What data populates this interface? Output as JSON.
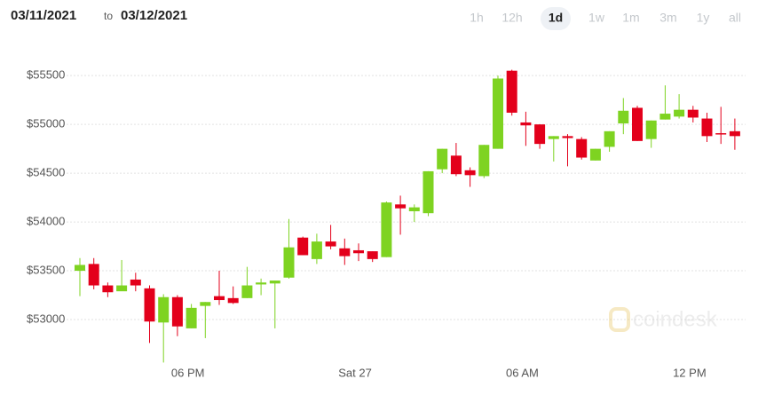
{
  "header": {
    "from_date": "03/11/2021",
    "separator": "to",
    "to_date": "03/12/2021",
    "ranges": [
      "1h",
      "12h",
      "1d",
      "1w",
      "1m",
      "3m",
      "1y",
      "all"
    ],
    "selected_range": "1d"
  },
  "watermark": "coindesk",
  "chart_data": {
    "type": "candlestick",
    "categories": [
      null,
      null,
      null,
      null,
      null,
      null,
      null,
      null,
      null,
      null,
      null,
      null,
      null,
      null,
      null,
      null,
      null,
      null,
      null,
      null,
      null,
      null,
      null,
      null,
      null,
      null,
      null,
      null,
      null,
      null,
      null,
      null,
      null,
      null,
      null,
      null,
      null,
      null,
      null,
      null,
      null,
      null,
      null,
      null,
      null,
      null,
      null,
      null
    ],
    "open": [
      53500,
      53570,
      53350,
      53290,
      53410,
      53320,
      52970,
      53230,
      52910,
      53140,
      53240,
      53220,
      53220,
      53360,
      53370,
      53430,
      53840,
      53620,
      53800,
      53730,
      53710,
      53700,
      53640,
      54180,
      54110,
      54090,
      54540,
      54680,
      54530,
      54470,
      54750,
      55550,
      55020,
      55000,
      54850,
      54880,
      54850,
      54630,
      54770,
      55010,
      55170,
      54850,
      55050,
      55080,
      55150,
      55060,
      54910,
      54930
    ],
    "high": [
      53630,
      53630,
      53380,
      53610,
      53480,
      53350,
      53260,
      53250,
      53160,
      53180,
      53500,
      53340,
      53540,
      53420,
      53400,
      54030,
      53850,
      53880,
      53970,
      53830,
      53780,
      53700,
      54210,
      54270,
      54180,
      54520,
      54750,
      54810,
      54560,
      54790,
      55500,
      55560,
      55130,
      55000,
      54880,
      54900,
      54870,
      54750,
      54930,
      55270,
      55190,
      55040,
      55400,
      55310,
      55190,
      55120,
      55180,
      55060
    ],
    "low": [
      53240,
      53310,
      53230,
      53300,
      53290,
      52760,
      52560,
      52830,
      52910,
      52810,
      53150,
      53160,
      53220,
      53250,
      52910,
      53420,
      53660,
      53570,
      53720,
      53560,
      53600,
      53590,
      53640,
      53870,
      54000,
      54060,
      54500,
      54470,
      54360,
      54450,
      54750,
      55090,
      54780,
      54750,
      54620,
      54570,
      54640,
      54630,
      54720,
      54900,
      54830,
      54760,
      55050,
      55060,
      55020,
      54820,
      54800,
      54740
    ],
    "close": [
      53560,
      53350,
      53280,
      53350,
      53350,
      52980,
      53230,
      52930,
      53120,
      53180,
      53200,
      53170,
      53350,
      53380,
      53400,
      53740,
      53660,
      53800,
      53750,
      53650,
      53680,
      53620,
      54200,
      54140,
      54150,
      54520,
      54750,
      54490,
      54480,
      54790,
      55470,
      55120,
      54990,
      54800,
      54880,
      54860,
      54660,
      54750,
      54930,
      55140,
      54830,
      55040,
      55110,
      55150,
      55070,
      54880,
      54900,
      54880
    ],
    "up_color": "#7ed321",
    "down_color": "#e3001b",
    "ylim": [
      52500,
      55820
    ],
    "yticks": [
      {
        "value": 53000,
        "label": "$53000"
      },
      {
        "value": 53500,
        "label": "$53500"
      },
      {
        "value": 54000,
        "label": "$54000"
      },
      {
        "value": 54500,
        "label": "$54500"
      },
      {
        "value": 55000,
        "label": "$55000"
      },
      {
        "value": 55500,
        "label": "$55500"
      }
    ],
    "xticks": [
      {
        "value": 7.75,
        "label": "06 PM"
      },
      {
        "value": 19.75,
        "label": "Sat 27"
      },
      {
        "value": 31.75,
        "label": "06 AM"
      },
      {
        "value": 43.75,
        "label": "12 PM"
      }
    ],
    "grid": true
  }
}
